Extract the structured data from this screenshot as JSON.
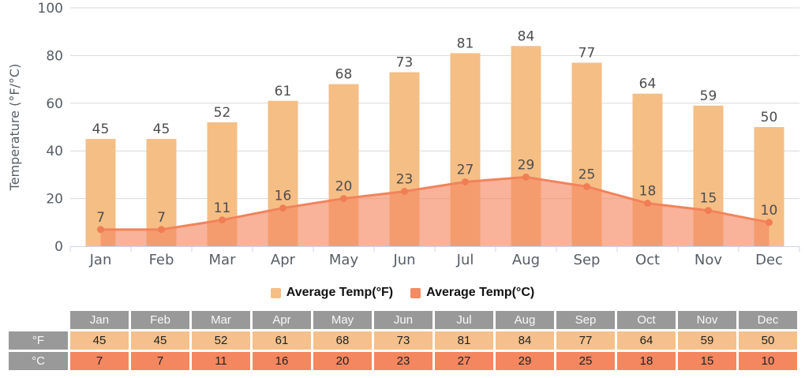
{
  "chart_data": {
    "type": "combo",
    "title": "",
    "categories": [
      "Jan",
      "Feb",
      "Mar",
      "Apr",
      "May",
      "Jun",
      "Jul",
      "Aug",
      "Sep",
      "Oct",
      "Nov",
      "Dec"
    ],
    "series": [
      {
        "name": "Average Temp(°F)",
        "type": "bar",
        "values": [
          45,
          45,
          52,
          61,
          68,
          73,
          81,
          84,
          77,
          64,
          59,
          50
        ],
        "color": "#f5be85"
      },
      {
        "name": "Average Temp(°C)",
        "type": "area",
        "values": [
          7,
          7,
          11,
          16,
          20,
          23,
          27,
          29,
          25,
          18,
          15,
          10
        ],
        "color": "#f58b64",
        "line_color": "#f2835b",
        "marker_color": "#f07e55",
        "fill_opacity": 0.65
      }
    ],
    "xlabel": "",
    "ylabel": "Temperature (°F/°C)",
    "ylim": [
      0,
      100
    ],
    "yticks": [
      0,
      20,
      40,
      60,
      80,
      100
    ],
    "grid": true,
    "data_labels": true,
    "legend_position": "bottom"
  },
  "legend": {
    "items": [
      {
        "label": "Average Temp(°F)",
        "color": "#f5be85"
      },
      {
        "label": "Average Temp(°C)",
        "color": "#f58b64"
      }
    ]
  },
  "table": {
    "corner_label": "",
    "columns": [
      "Jan",
      "Feb",
      "Mar",
      "Apr",
      "May",
      "Jun",
      "Jul",
      "Aug",
      "Sep",
      "Oct",
      "Nov",
      "Dec"
    ],
    "rows": [
      {
        "label": "°F",
        "values": [
          45,
          45,
          52,
          61,
          68,
          73,
          81,
          84,
          77,
          64,
          59,
          50
        ],
        "row_color": "#f5c08b"
      },
      {
        "label": "°C",
        "values": [
          7,
          7,
          11,
          16,
          20,
          23,
          27,
          29,
          25,
          18,
          15,
          10
        ],
        "row_color": "#f4875f"
      }
    ],
    "header_color": "#999999"
  },
  "colors": {
    "grid_line": "#d9d9d9",
    "axis_line": "#ccd6eb",
    "axis_label": "#565d66",
    "data_label": "#4d4d4d",
    "legend_text": "#111111"
  }
}
